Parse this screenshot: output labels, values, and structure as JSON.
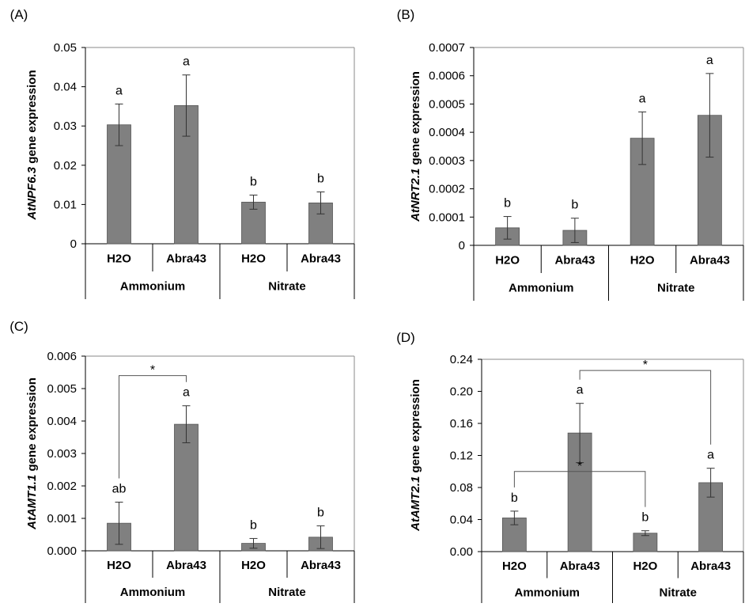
{
  "colors": {
    "bar": "#808080",
    "bar_stroke": "#555555",
    "axis": "#000000",
    "frame": "#888888"
  },
  "chart_data": [
    {
      "panel": "(A)",
      "type": "bar",
      "ylabel_italic": "AtNPF6.3",
      "ylabel_rest": " gene expression",
      "ylim": [
        0,
        0.05
      ],
      "yticks": [
        "0",
        "0.01",
        "0.02",
        "0.03",
        "0.04",
        "0.05"
      ],
      "categories": [
        "H2O",
        "Abra43",
        "H2O",
        "Abra43"
      ],
      "groups": [
        "Ammonium",
        "Nitrate"
      ],
      "values": [
        0.0303,
        0.0352,
        0.0106,
        0.0104
      ],
      "errors": [
        0.0053,
        0.0078,
        0.0018,
        0.0028
      ],
      "letters": [
        "a",
        "a",
        "b",
        "b"
      ],
      "brackets": []
    },
    {
      "panel": "(B)",
      "type": "bar",
      "ylabel_italic": "AtNRT2.1",
      "ylabel_rest": " gene expression",
      "ylim": [
        0,
        0.0007
      ],
      "yticks": [
        "0",
        "0.0001",
        "0.0002",
        "0.0003",
        "0.0004",
        "0.0005",
        "0.0006",
        "0.0007"
      ],
      "categories": [
        "H2O",
        "Abra43",
        "H2O",
        "Abra43"
      ],
      "groups": [
        "Ammonium",
        "Nitrate"
      ],
      "values": [
        6.2e-05,
        5.3e-05,
        0.000379,
        0.00046
      ],
      "errors": [
        4e-05,
        4.3e-05,
        9.3e-05,
        0.000148
      ],
      "letters": [
        "b",
        "b",
        "a",
        "a"
      ],
      "brackets": []
    },
    {
      "panel": "(C)",
      "type": "bar",
      "ylabel_italic": "AtAMT1.1",
      "ylabel_rest": " gene expression",
      "ylim": [
        0,
        0.006
      ],
      "yticks": [
        "0.000",
        "0.001",
        "0.002",
        "0.003",
        "0.004",
        "0.005",
        "0.006"
      ],
      "categories": [
        "H2O",
        "Abra43",
        "H2O",
        "Abra43"
      ],
      "groups": [
        "Ammonium",
        "Nitrate"
      ],
      "values": [
        0.00085,
        0.0039,
        0.00023,
        0.00042
      ],
      "errors": [
        0.00065,
        0.00057,
        0.00015,
        0.00035
      ],
      "letters": [
        "ab",
        "a",
        "b",
        "b"
      ],
      "brackets": [
        {
          "from": 0,
          "to": 1,
          "level": 0.0054,
          "label": "*"
        }
      ]
    },
    {
      "panel": "(D)",
      "type": "bar",
      "ylabel_italic": "AtAMT2.1",
      "ylabel_rest": " gene expression",
      "ylim": [
        0,
        0.24
      ],
      "yticks": [
        "0.00",
        "0.04",
        "0.08",
        "0.12",
        "0.16",
        "0.20",
        "0.24"
      ],
      "categories": [
        "H2O",
        "Abra43",
        "H2O",
        "Abra43"
      ],
      "groups": [
        "Ammonium",
        "Nitrate"
      ],
      "values": [
        0.042,
        0.148,
        0.023,
        0.086
      ],
      "errors": [
        0.0085,
        0.037,
        0.003,
        0.018
      ],
      "letters": [
        "b",
        "a",
        "b",
        "a"
      ],
      "brackets": [
        {
          "from": 1,
          "to": 3,
          "level": 0.226,
          "label": "*"
        },
        {
          "from": 0,
          "to": 2,
          "level": 0.1,
          "label": "*"
        }
      ]
    }
  ]
}
